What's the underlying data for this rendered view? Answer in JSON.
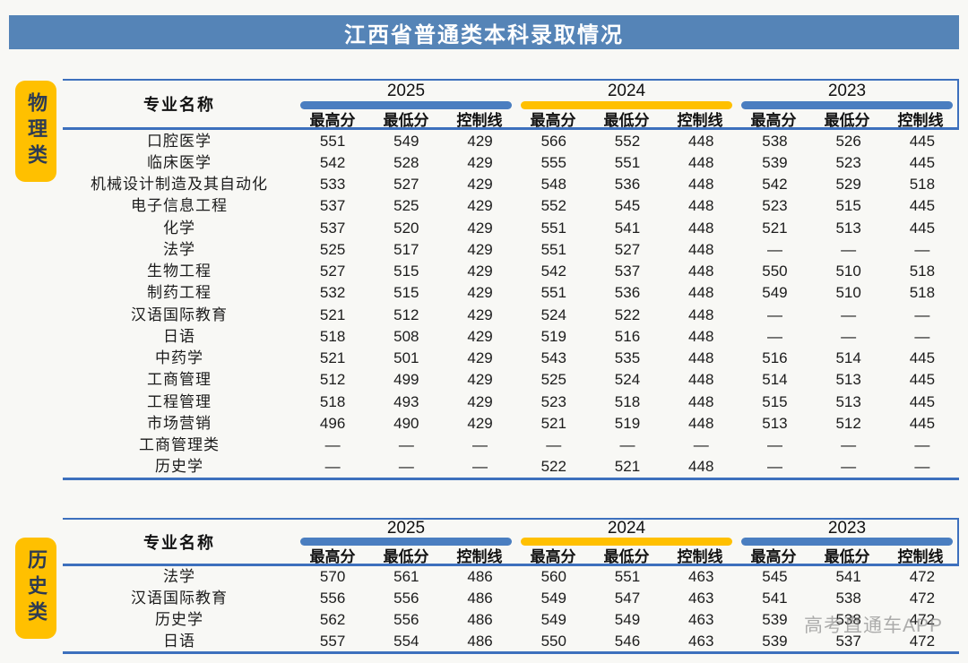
{
  "title": "江西省普通类本科录取情况",
  "watermark": "高考直通车APP",
  "colors": {
    "banner_blue": "#5584b7",
    "pill_blue": "#4a7ec0",
    "line_blue": "#3d70bd",
    "accent_yellow": "#ffc000"
  },
  "columns": {
    "major": "专业名称",
    "years": [
      "2025",
      "2024",
      "2023"
    ],
    "sub": [
      "最高分",
      "最低分",
      "控制线"
    ]
  },
  "tables": [
    {
      "category": "物理类",
      "rows": [
        {
          "major": "口腔医学",
          "scores": [
            "551",
            "549",
            "429",
            "566",
            "552",
            "448",
            "538",
            "526",
            "445"
          ]
        },
        {
          "major": "临床医学",
          "scores": [
            "542",
            "528",
            "429",
            "555",
            "551",
            "448",
            "539",
            "523",
            "445"
          ]
        },
        {
          "major": "机械设计制造及其自动化",
          "scores": [
            "533",
            "527",
            "429",
            "548",
            "536",
            "448",
            "542",
            "529",
            "518"
          ]
        },
        {
          "major": "电子信息工程",
          "scores": [
            "537",
            "525",
            "429",
            "552",
            "545",
            "448",
            "523",
            "515",
            "445"
          ]
        },
        {
          "major": "化学",
          "scores": [
            "537",
            "520",
            "429",
            "551",
            "541",
            "448",
            "521",
            "513",
            "445"
          ]
        },
        {
          "major": "法学",
          "scores": [
            "525",
            "517",
            "429",
            "551",
            "527",
            "448",
            "—",
            "—",
            "—"
          ]
        },
        {
          "major": "生物工程",
          "scores": [
            "527",
            "515",
            "429",
            "542",
            "537",
            "448",
            "550",
            "510",
            "518"
          ]
        },
        {
          "major": "制药工程",
          "scores": [
            "532",
            "515",
            "429",
            "551",
            "536",
            "448",
            "549",
            "510",
            "518"
          ]
        },
        {
          "major": "汉语国际教育",
          "scores": [
            "521",
            "512",
            "429",
            "524",
            "522",
            "448",
            "—",
            "—",
            "—"
          ]
        },
        {
          "major": "日语",
          "scores": [
            "518",
            "508",
            "429",
            "519",
            "516",
            "448",
            "—",
            "—",
            "—"
          ]
        },
        {
          "major": "中药学",
          "scores": [
            "521",
            "501",
            "429",
            "543",
            "535",
            "448",
            "516",
            "514",
            "445"
          ]
        },
        {
          "major": "工商管理",
          "scores": [
            "512",
            "499",
            "429",
            "525",
            "524",
            "448",
            "514",
            "513",
            "445"
          ]
        },
        {
          "major": "工程管理",
          "scores": [
            "518",
            "493",
            "429",
            "523",
            "518",
            "448",
            "515",
            "513",
            "445"
          ]
        },
        {
          "major": "市场营销",
          "scores": [
            "496",
            "490",
            "429",
            "521",
            "519",
            "448",
            "513",
            "512",
            "445"
          ]
        },
        {
          "major": "工商管理类",
          "scores": [
            "—",
            "—",
            "—",
            "—",
            "—",
            "—",
            "—",
            "—",
            "—"
          ]
        },
        {
          "major": "历史学",
          "scores": [
            "—",
            "—",
            "—",
            "522",
            "521",
            "448",
            "—",
            "—",
            "—"
          ]
        }
      ]
    },
    {
      "category": "历史类",
      "rows": [
        {
          "major": "法学",
          "scores": [
            "570",
            "561",
            "486",
            "560",
            "551",
            "463",
            "545",
            "541",
            "472"
          ]
        },
        {
          "major": "汉语国际教育",
          "scores": [
            "556",
            "556",
            "486",
            "549",
            "547",
            "463",
            "541",
            "538",
            "472"
          ]
        },
        {
          "major": "历史学",
          "scores": [
            "562",
            "556",
            "486",
            "549",
            "549",
            "463",
            "539",
            "538",
            "472"
          ]
        },
        {
          "major": "日语",
          "scores": [
            "557",
            "554",
            "486",
            "550",
            "546",
            "463",
            "539",
            "537",
            "472"
          ]
        }
      ]
    }
  ]
}
